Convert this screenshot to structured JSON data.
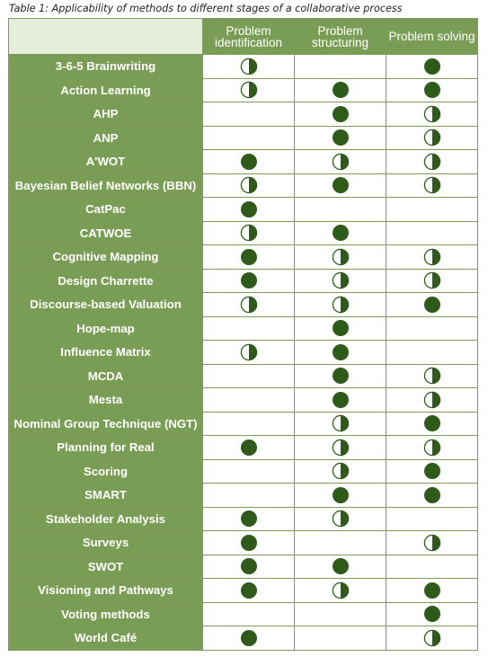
{
  "caption": "Table 1: Applicability of methods to different stages of a collaborative process",
  "columns": [
    "Problem identification",
    "Problem structuring",
    "Problem solving"
  ],
  "legend_colors": {
    "header_bg": "#7a9d55",
    "corner_bg": "#e4eed8",
    "dot": "#2e5a1a"
  },
  "rows": [
    {
      "method": "3-6-5 Brainwriting",
      "marks": [
        "half",
        "",
        "full"
      ]
    },
    {
      "method": "Action Learning",
      "marks": [
        "half",
        "full",
        "full"
      ]
    },
    {
      "method": "AHP",
      "marks": [
        "",
        "full",
        "half"
      ]
    },
    {
      "method": "ANP",
      "marks": [
        "",
        "full",
        "half"
      ]
    },
    {
      "method": "A'WOT",
      "marks": [
        "full",
        "half",
        "half"
      ]
    },
    {
      "method": "Bayesian Belief Networks (BBN)",
      "marks": [
        "half",
        "full",
        "half"
      ]
    },
    {
      "method": "CatPac",
      "marks": [
        "full",
        "",
        ""
      ]
    },
    {
      "method": "CATWOE",
      "marks": [
        "half",
        "full",
        ""
      ]
    },
    {
      "method": "Cognitive Mapping",
      "marks": [
        "full",
        "half",
        "half"
      ]
    },
    {
      "method": "Design Charrette",
      "marks": [
        "full",
        "half",
        "half"
      ]
    },
    {
      "method": "Discourse-based Valuation",
      "marks": [
        "half",
        "half",
        "full"
      ]
    },
    {
      "method": "Hope-map",
      "marks": [
        "",
        "full",
        ""
      ]
    },
    {
      "method": "Influence Matrix",
      "marks": [
        "half",
        "full",
        ""
      ]
    },
    {
      "method": "MCDA",
      "marks": [
        "",
        "full",
        "half"
      ]
    },
    {
      "method": "Mesta",
      "marks": [
        "",
        "full",
        "half"
      ]
    },
    {
      "method": "Nominal Group Technique (NGT)",
      "marks": [
        "",
        "half",
        "full"
      ]
    },
    {
      "method": "Planning for Real",
      "marks": [
        "full",
        "half",
        "half"
      ]
    },
    {
      "method": "Scoring",
      "marks": [
        "",
        "half",
        "full"
      ]
    },
    {
      "method": "SMART",
      "marks": [
        "",
        "full",
        "full"
      ]
    },
    {
      "method": "Stakeholder Analysis",
      "marks": [
        "full",
        "half",
        ""
      ]
    },
    {
      "method": "Surveys",
      "marks": [
        "full",
        "",
        "half"
      ]
    },
    {
      "method": "SWOT",
      "marks": [
        "full",
        "full",
        ""
      ]
    },
    {
      "method": "Visioning and Pathways",
      "marks": [
        "full",
        "half",
        "full"
      ]
    },
    {
      "method": "Voting methods",
      "marks": [
        "",
        "",
        "full"
      ]
    },
    {
      "method": "World Café",
      "marks": [
        "full",
        "",
        "half"
      ]
    }
  ]
}
